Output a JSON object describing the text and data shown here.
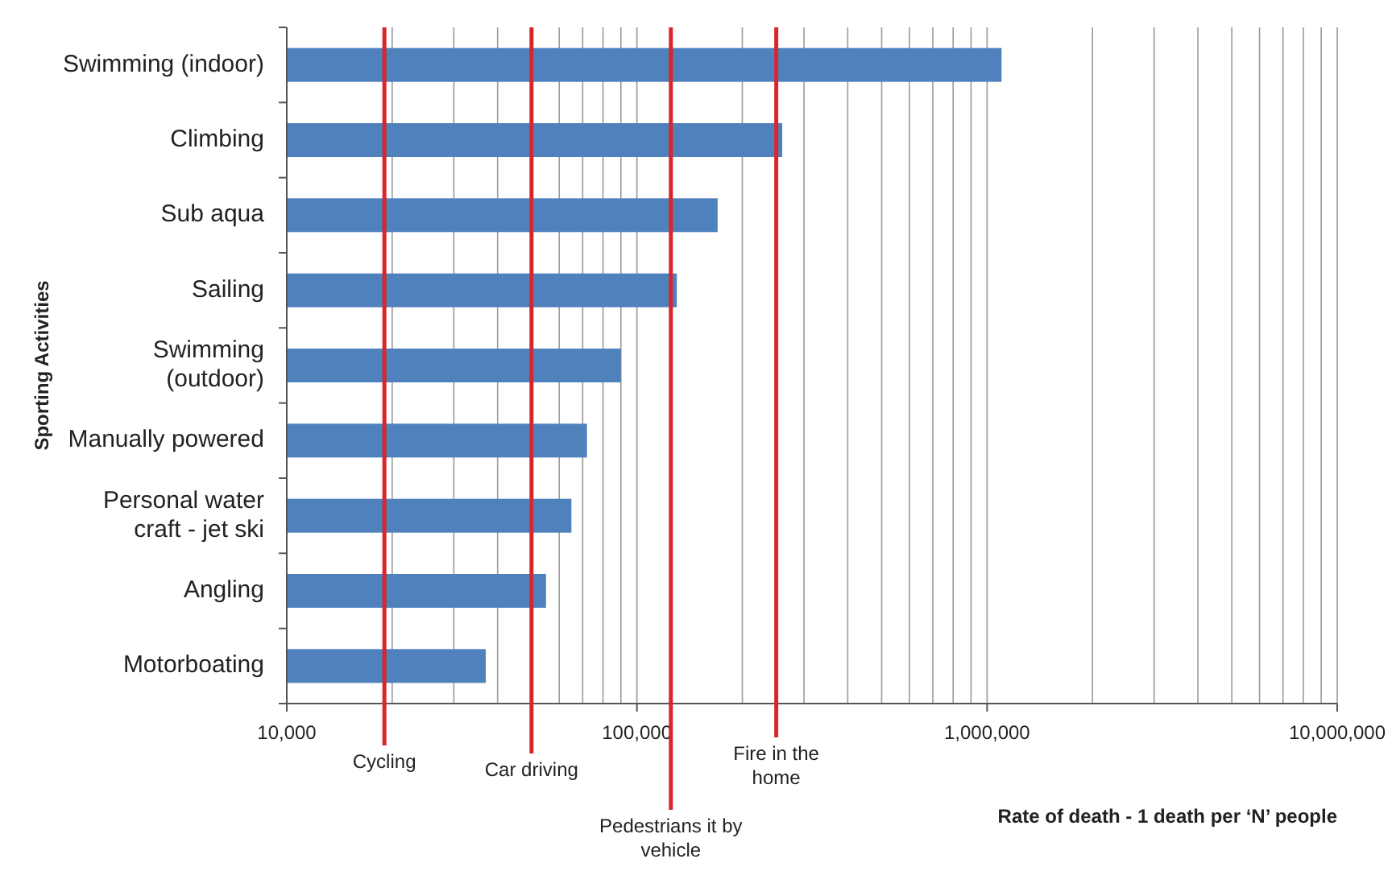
{
  "chart_data": {
    "type": "bar",
    "orientation": "horizontal",
    "log": "x",
    "ylabel": "Sporting Activities",
    "xlabel": "Rate of death - 1 death per ‘N’ people",
    "categories": [
      "Swimming (indoor)",
      "Climbing",
      "Sub aqua",
      "Sailing",
      "Swimming (outdoor)",
      "Manually powered",
      "Personal water craft - jet ski",
      "Angling",
      "Motorboating"
    ],
    "values": [
      1100000,
      260000,
      170000,
      130000,
      90000,
      72000,
      65000,
      55000,
      37000
    ],
    "color": "#4f81bd",
    "xlim": [
      10000,
      10000000
    ],
    "xticks": [
      {
        "value": 10000,
        "label": "10,000"
      },
      {
        "value": 20000,
        "label": null
      },
      {
        "value": 30000,
        "label": null
      },
      {
        "value": 40000,
        "label": null
      },
      {
        "value": 50000,
        "label": null
      },
      {
        "value": 60000,
        "label": null
      },
      {
        "value": 70000,
        "label": null
      },
      {
        "value": 80000,
        "label": null
      },
      {
        "value": 90000,
        "label": null
      },
      {
        "value": 100000,
        "label": "100,000"
      },
      {
        "value": 200000,
        "label": null
      },
      {
        "value": 300000,
        "label": null
      },
      {
        "value": 400000,
        "label": null
      },
      {
        "value": 500000,
        "label": null
      },
      {
        "value": 600000,
        "label": null
      },
      {
        "value": 700000,
        "label": null
      },
      {
        "value": 800000,
        "label": null
      },
      {
        "value": 900000,
        "label": null
      },
      {
        "value": 1000000,
        "label": "1,000,000"
      },
      {
        "value": 2000000,
        "label": null
      },
      {
        "value": 3000000,
        "label": null
      },
      {
        "value": 4000000,
        "label": null
      },
      {
        "value": 5000000,
        "label": null
      },
      {
        "value": 6000000,
        "label": null
      },
      {
        "value": 7000000,
        "label": null
      },
      {
        "value": 8000000,
        "label": null
      },
      {
        "value": 9000000,
        "label": null
      },
      {
        "value": 10000000,
        "label": "10,000,000"
      }
    ],
    "grid": "x",
    "ref_lines": [
      {
        "axis": "x",
        "value": 19000,
        "label": "Cycling",
        "color": "#d7262d"
      },
      {
        "axis": "x",
        "value": 50000,
        "label": "Car driving",
        "color": "#d7262d"
      },
      {
        "axis": "x",
        "value": 125000,
        "label": "Pedestrians it by vehicle",
        "color": "#d7262d"
      },
      {
        "axis": "x",
        "value": 250000,
        "label": "Fire in the home",
        "color": "#d7262d"
      }
    ]
  }
}
